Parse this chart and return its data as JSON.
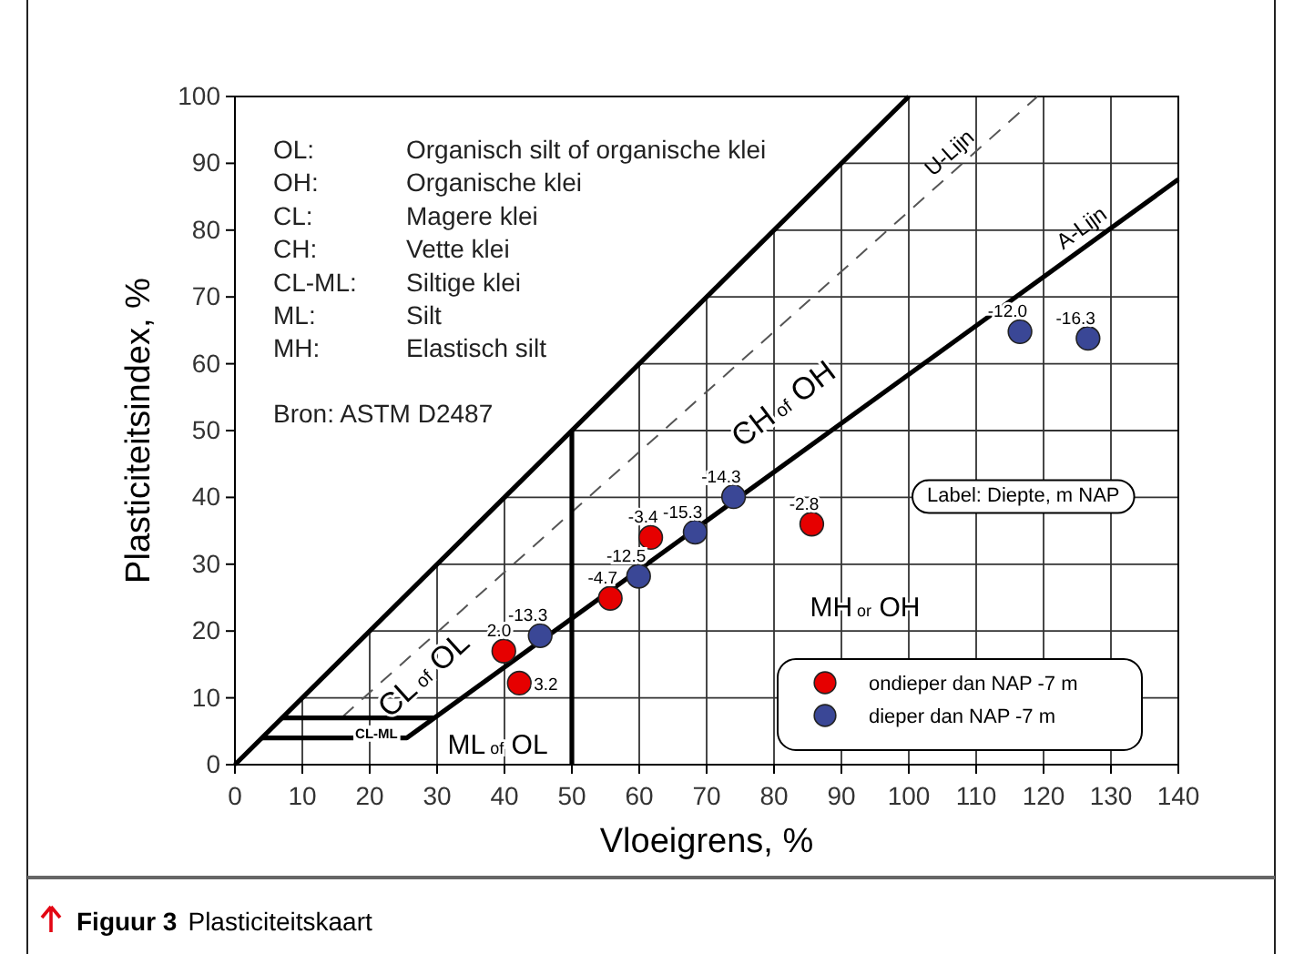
{
  "chart_data": {
    "type": "scatter",
    "title": "Figuur 3 Plasticiteitskaart",
    "xlabel": "Vloeigrens, %",
    "ylabel": "Plasticiteitsindex, %",
    "xlim": [
      0,
      140
    ],
    "ylim": [
      0,
      100
    ],
    "xticks": [
      0,
      10,
      20,
      30,
      40,
      50,
      60,
      70,
      80,
      90,
      100,
      110,
      120,
      130,
      140
    ],
    "yticks": [
      0,
      10,
      20,
      30,
      40,
      50,
      60,
      70,
      80,
      90,
      100
    ],
    "grid": true,
    "legend": "bottom right",
    "series": [
      {
        "name": "ondieper dan NAP -7 m",
        "color": "#e60000",
        "marker": "circle",
        "x": [
          39.9,
          42.2,
          55.7,
          61.7,
          85.6
        ],
        "values": [
          17,
          12.2,
          24.9,
          34,
          36
        ]
      },
      {
        "name": "dieper dan NAP -7 m",
        "color": "#3a4796",
        "marker": "circle",
        "x": [
          45.3,
          59.9,
          68.3,
          74,
          116.5,
          126.6
        ],
        "values": [
          19.3,
          28.2,
          34.8,
          40.1,
          64.8,
          63.8
        ]
      },
      {
        "type": "line",
        "name": "A-Lijn",
        "color": "#000000",
        "x": [
          4,
          25.5,
          140
        ],
        "values": [
          4,
          4,
          87.6
        ]
      },
      {
        "type": "line",
        "name": "U-Lijn",
        "color": "#555555",
        "line_style": "dashed",
        "x": [
          16,
          119.1
        ],
        "values": [
          7.2,
          100
        ]
      },
      {
        "type": "line",
        "color": "#000000",
        "x": [
          0,
          100
        ],
        "values": [
          0,
          100
        ]
      },
      {
        "type": "line",
        "color": "#000000",
        "x": [
          50,
          50
        ],
        "values": [
          0,
          50
        ]
      },
      {
        "type": "line",
        "color": "#000000",
        "x": [
          7,
          29.6
        ],
        "values": [
          7,
          7
        ]
      }
    ],
    "annotations": [
      "OL: Organisch silt of organische klei",
      "OH: Organische klei",
      "CL: Magere klei",
      "CH: Vette klei",
      "CL-ML: Siltige klei",
      "ML: Silt",
      "MH: Elastisch silt",
      "Bron: ASTM D2487",
      "Label: Diepte, m NAP",
      "CL of OL",
      "CH of OH",
      "ML of OL",
      "MH or OH",
      "CL-ML",
      {
        "text": "2.0",
        "x": 39.9,
        "y": 17
      },
      {
        "text": "3.2",
        "x": 42.2,
        "y": 12.2
      },
      {
        "text": "-4.7",
        "x": 55.7,
        "y": 24.9
      },
      {
        "text": "-3.4",
        "x": 61.7,
        "y": 34
      },
      {
        "text": "-2.8",
        "x": 85.6,
        "y": 36
      },
      {
        "text": "-13.3",
        "x": 45.3,
        "y": 19.3
      },
      {
        "text": "-12.5",
        "x": 59.9,
        "y": 28.2
      },
      {
        "text": "-15.3",
        "x": 68.3,
        "y": 34.8
      },
      {
        "text": "-14.3",
        "x": 74,
        "y": 40.1
      },
      {
        "text": "-12.0",
        "x": 116.5,
        "y": 64.8
      },
      {
        "text": "-16.3",
        "x": 126.6,
        "y": 63.8
      }
    ]
  }
}
